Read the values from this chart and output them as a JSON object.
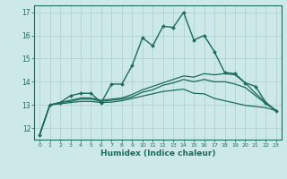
{
  "xlabel": "Humidex (Indice chaleur)",
  "xlim": [
    -0.5,
    23.5
  ],
  "ylim": [
    11.5,
    17.3
  ],
  "yticks": [
    12,
    13,
    14,
    15,
    16,
    17
  ],
  "xticks": [
    0,
    1,
    2,
    3,
    4,
    5,
    6,
    7,
    8,
    9,
    10,
    11,
    12,
    13,
    14,
    15,
    16,
    17,
    18,
    19,
    20,
    21,
    22,
    23
  ],
  "bg_color": "#cce8e8",
  "grid_color": "#aacece",
  "line_color": "#1a6b5a",
  "curves": [
    {
      "x": [
        0,
        1,
        2,
        3,
        4,
        5,
        6,
        7,
        8,
        9,
        10,
        11,
        12,
        13,
        14,
        15,
        16,
        17,
        18,
        19,
        20,
        21,
        22,
        23
      ],
      "y": [
        11.7,
        13.0,
        13.1,
        13.4,
        13.5,
        13.5,
        13.1,
        13.9,
        13.9,
        14.7,
        15.9,
        15.55,
        16.4,
        16.35,
        17.0,
        15.8,
        16.0,
        15.3,
        14.4,
        14.35,
        13.95,
        13.8,
        13.1,
        12.75
      ],
      "marker": true,
      "lw": 1.0
    },
    {
      "x": [
        0,
        1,
        2,
        3,
        4,
        5,
        6,
        7,
        8,
        9,
        10,
        11,
        12,
        13,
        14,
        15,
        16,
        17,
        18,
        19,
        20,
        21,
        22,
        23
      ],
      "y": [
        11.7,
        13.0,
        13.1,
        13.2,
        13.3,
        13.3,
        13.2,
        13.25,
        13.3,
        13.45,
        13.65,
        13.8,
        13.95,
        14.1,
        14.25,
        14.2,
        14.35,
        14.3,
        14.35,
        14.3,
        13.95,
        13.5,
        13.1,
        12.75
      ],
      "marker": false,
      "lw": 0.9
    },
    {
      "x": [
        0,
        1,
        2,
        3,
        4,
        5,
        6,
        7,
        8,
        9,
        10,
        11,
        12,
        13,
        14,
        15,
        16,
        17,
        18,
        19,
        20,
        21,
        22,
        23
      ],
      "y": [
        11.7,
        13.0,
        13.1,
        13.15,
        13.25,
        13.25,
        13.15,
        13.2,
        13.25,
        13.35,
        13.55,
        13.65,
        13.85,
        13.95,
        14.1,
        14.0,
        14.1,
        14.0,
        14.0,
        13.9,
        13.75,
        13.4,
        13.05,
        12.75
      ],
      "marker": false,
      "lw": 0.9
    },
    {
      "x": [
        0,
        1,
        2,
        3,
        4,
        5,
        6,
        7,
        8,
        9,
        10,
        11,
        12,
        13,
        14,
        15,
        16,
        17,
        18,
        19,
        20,
        21,
        22,
        23
      ],
      "y": [
        11.7,
        13.0,
        13.05,
        13.1,
        13.15,
        13.15,
        13.1,
        13.12,
        13.18,
        13.28,
        13.38,
        13.48,
        13.58,
        13.63,
        13.68,
        13.5,
        13.48,
        13.28,
        13.18,
        13.08,
        12.98,
        12.93,
        12.88,
        12.75
      ],
      "marker": false,
      "lw": 0.9
    }
  ]
}
